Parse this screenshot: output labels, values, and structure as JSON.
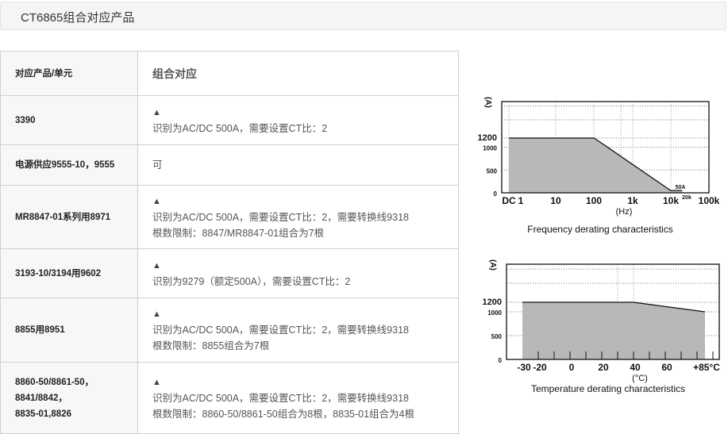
{
  "page_title": "CT6865组合对应产品",
  "table": {
    "headers": [
      "对应产品/单元",
      "组合对应"
    ],
    "rows": [
      {
        "product": [
          "3390"
        ],
        "mark": "▲",
        "lines": [
          "识别为AC/DC 500A，需要设置CT比：2"
        ]
      },
      {
        "product": [
          "电源供应9555-10，9555"
        ],
        "mark": "",
        "lines": [
          "可"
        ]
      },
      {
        "product": [
          "MR8847-01系列用8971"
        ],
        "mark": "▲",
        "lines": [
          "识别为AC/DC 500A，需要设置CT比：2，需要转换线9318",
          "根数限制：8847/MR8847-01组合为7根"
        ]
      },
      {
        "product": [
          "3193-10/3194用9602"
        ],
        "mark": "▲",
        "lines": [
          "识别为9279（额定500A），需要设置CT比：2"
        ]
      },
      {
        "product": [
          "8855用8951"
        ],
        "mark": "▲",
        "lines": [
          "识别为AC/DC 500A，需要设置CT比：2，需要转换线9318",
          "根数限制：8855组合为7根"
        ]
      },
      {
        "product": [
          "8860-50/8861-50，",
          "8841/8842，",
          "8835-01,8826"
        ],
        "mark": "▲",
        "lines": [
          "识别为AC/DC 500A，需要设置CT比：2，需要转换线9318",
          "根数限制：8860-50/8861-50组合为8根，8835-01组合为4根"
        ]
      }
    ]
  },
  "chart_data": [
    {
      "type": "area",
      "title": "Frequency derating characteristics",
      "xlabel": "(Hz)",
      "ylabel": "(A)",
      "x_scale": "log",
      "x_tick_labels": [
        "DC",
        "1",
        "10",
        "100",
        "1k",
        "10k",
        "100k"
      ],
      "y_tick_labels": [
        "0",
        "500",
        "1000",
        "1200"
      ],
      "ylim": [
        0,
        2000
      ],
      "xlim": [
        1,
        100000
      ],
      "annotations": [
        "50A",
        "20k"
      ],
      "grid": true,
      "x": [
        "DC",
        100,
        10000,
        20000
      ],
      "values": [
        1200,
        1200,
        50,
        50
      ]
    },
    {
      "type": "area",
      "title": "Temperature derating characteristics",
      "xlabel": "(°C)",
      "ylabel": "(A)",
      "x_tick_labels": [
        "-30",
        "-20",
        "0",
        "20",
        "40",
        "60",
        "+85°C"
      ],
      "y_tick_labels": [
        "0",
        "500",
        "1000",
        "1200"
      ],
      "ylim": [
        0,
        2000
      ],
      "xlim": [
        -40,
        95
      ],
      "grid": true,
      "x": [
        -30,
        40,
        85
      ],
      "values": [
        1200,
        1200,
        1000
      ]
    }
  ],
  "colors": {
    "fill": "#b8b8b8",
    "line": "#111111",
    "header_bg": "#f5f5f5"
  }
}
